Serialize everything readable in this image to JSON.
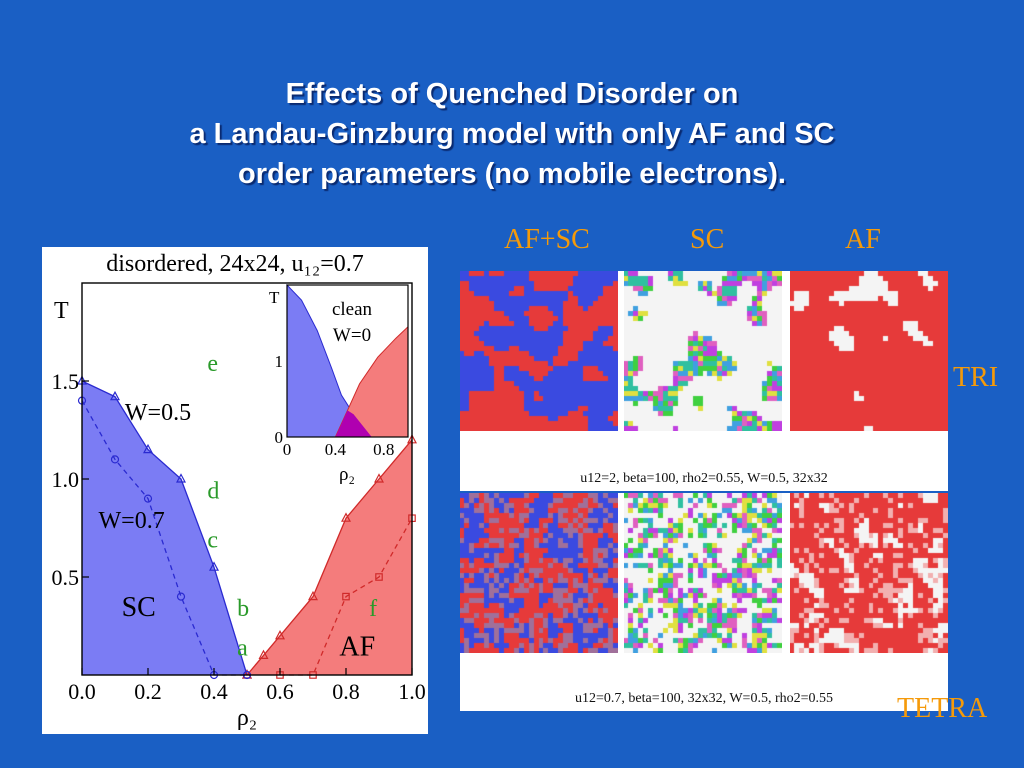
{
  "slide": {
    "title_lines": [
      "Effects of Quenched Disorder on",
      "a Landau-Ginzburg model with only AF and SC",
      "order parameters (no mobile electrons)."
    ],
    "background": "#1a5fc4",
    "label_color": "#f59a0a"
  },
  "snapshots": {
    "columns": [
      "AF+SC",
      "SC",
      "AF"
    ],
    "rows": [
      {
        "label": "TRI",
        "caption": "u12=2, beta=100, rho2=0.55, W=0.5, 32x32"
      },
      {
        "label": "TETRA",
        "caption": "u12=0.7, beta=100, 32x32, W=0.5, rho2=0.55"
      }
    ],
    "colors": {
      "af_red": "#e63a3a",
      "sc_blue": "#3a4ae0",
      "white": "#f4f4f4"
    }
  },
  "chart_data": [
    {
      "type": "area",
      "title": "disordered, 24x24, u₁₂=0.7",
      "xlabel": "ρ₂",
      "ylabel": "T",
      "xlim": [
        0.0,
        1.0
      ],
      "ylim": [
        0.0,
        2.0
      ],
      "xticks": [
        "0.0",
        "0.2",
        "0.4",
        "0.6",
        "0.8",
        "1.0"
      ],
      "yticks": [
        "0.5",
        "1.0",
        "1.5"
      ],
      "regions": [
        {
          "name": "SC",
          "color": "#7b7cf4"
        },
        {
          "name": "AF",
          "color": "#f47c7c"
        }
      ],
      "series": [
        {
          "name": "W=0.5",
          "marker": "triangle",
          "line": "solid",
          "color": "#2a2ad0",
          "side": "SC",
          "x": [
            0.0,
            0.1,
            0.2,
            0.3,
            0.4,
            0.5
          ],
          "y": [
            1.5,
            1.42,
            1.15,
            1.0,
            0.55,
            0.0
          ]
        },
        {
          "name": "W=0.5",
          "marker": "triangle",
          "line": "solid",
          "color": "#d02a2a",
          "side": "AF",
          "x": [
            0.5,
            0.55,
            0.6,
            0.7,
            0.8,
            0.9,
            1.0
          ],
          "y": [
            0.0,
            0.1,
            0.2,
            0.4,
            0.8,
            1.0,
            1.2
          ]
        },
        {
          "name": "W=0.7",
          "marker": "circle",
          "line": "dashed",
          "color": "#2a2ad0",
          "x": [
            0.0,
            0.1,
            0.2,
            0.3,
            0.4,
            0.5
          ],
          "y": [
            1.4,
            1.1,
            0.9,
            0.4,
            0.0,
            0.0
          ]
        },
        {
          "name": "W=0.7",
          "marker": "square",
          "line": "dashed",
          "color": "#d02a2a",
          "x": [
            0.6,
            0.7,
            0.8,
            0.9,
            1.0
          ],
          "y": [
            0.0,
            0.0,
            0.4,
            0.5,
            0.8
          ]
        }
      ],
      "annotations": [
        {
          "text": "e",
          "x": 0.38,
          "y": 1.55
        },
        {
          "text": "d",
          "x": 0.38,
          "y": 0.9
        },
        {
          "text": "c",
          "x": 0.38,
          "y": 0.65
        },
        {
          "text": "b",
          "x": 0.47,
          "y": 0.3
        },
        {
          "text": "a",
          "x": 0.47,
          "y": 0.1
        },
        {
          "text": "f",
          "x": 0.87,
          "y": 0.3
        },
        {
          "text": "W=0.5",
          "x": 0.13,
          "y": 1.3
        },
        {
          "text": "W=0.7",
          "x": 0.05,
          "y": 0.75
        },
        {
          "text": "SC",
          "x": 0.12,
          "y": 0.3
        },
        {
          "text": "AF",
          "x": 0.78,
          "y": 0.1
        }
      ]
    },
    {
      "type": "area",
      "title": "",
      "inset": true,
      "xlabel": "ρ₂",
      "ylabel": "T",
      "xlim": [
        0.0,
        1.0
      ],
      "ylim": [
        0.0,
        2.0
      ],
      "xticks": [
        "0",
        "0.4",
        "0.8"
      ],
      "yticks": [
        "0",
        "1"
      ],
      "legend": "clean W=0",
      "legend_lines": [
        "clean",
        "W=0"
      ],
      "regions": [
        {
          "name": "SC",
          "color": "#7b7cf4",
          "x": [
            0.0,
            0.12,
            0.25,
            0.37,
            0.45,
            0.55,
            0.7
          ],
          "y": [
            2.0,
            1.8,
            1.4,
            0.9,
            0.55,
            0.3,
            0.0
          ]
        },
        {
          "name": "AF",
          "color": "#f47c7c",
          "x": [
            0.4,
            0.5,
            0.6,
            0.75,
            0.9,
            1.0
          ],
          "y": [
            0.0,
            0.35,
            0.7,
            1.05,
            1.3,
            1.45
          ]
        },
        {
          "name": "coexistence",
          "color": "#b000b0"
        }
      ]
    }
  ]
}
